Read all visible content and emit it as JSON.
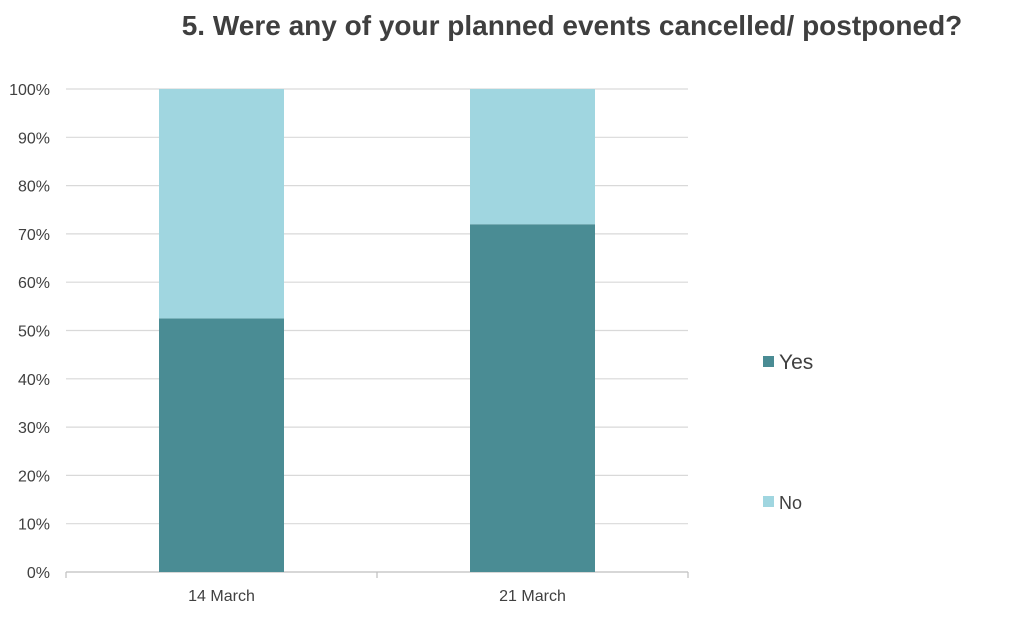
{
  "chart_data": {
    "type": "bar",
    "stacked": true,
    "title": "5. Were any of your planned events cancelled/ postponed?",
    "xlabel": "",
    "ylabel": "",
    "categories": [
      "14 March",
      "21 March"
    ],
    "series": [
      {
        "name": "Yes",
        "values": [
          52.5,
          72
        ],
        "color": "#4a8c94"
      },
      {
        "name": "No",
        "values": [
          47.5,
          28
        ],
        "color": "#a0d6e0"
      }
    ],
    "ylim": [
      0,
      100
    ],
    "yticks": [
      "0%",
      "10%",
      "20%",
      "30%",
      "40%",
      "50%",
      "60%",
      "70%",
      "80%",
      "90%",
      "100%"
    ],
    "grid": true,
    "legend_position": "right"
  }
}
